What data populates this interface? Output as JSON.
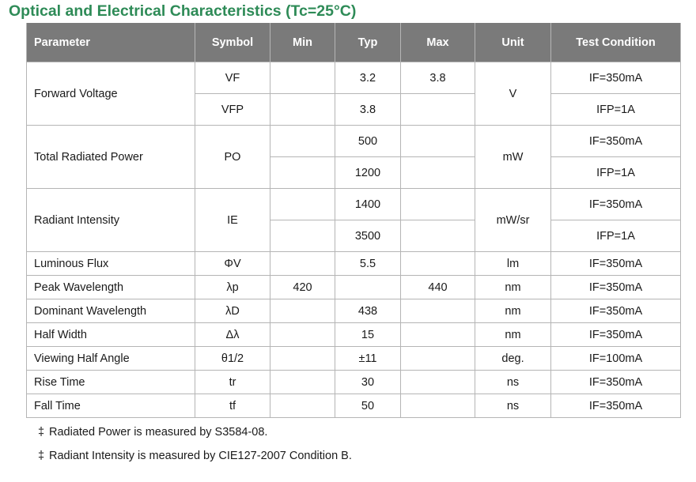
{
  "title": "Optical and Electrical Characteristics (Tc=25°C)",
  "table": {
    "headers": {
      "parameter": "Parameter",
      "symbol": "Symbol",
      "min": "Min",
      "typ": "Typ",
      "max": "Max",
      "unit": "Unit",
      "condition": "Test Condition"
    },
    "forward_voltage": {
      "parameter": "Forward Voltage",
      "unit": "V",
      "rows": [
        {
          "symbol": "VF",
          "min": "",
          "typ": "3.2",
          "max": "3.8",
          "condition": "IF=350mA"
        },
        {
          "symbol": "VFP",
          "min": "",
          "typ": "3.8",
          "max": "",
          "condition": "IFP=1A"
        }
      ]
    },
    "radiated_power": {
      "parameter": "Total Radiated Power",
      "symbol": "PO",
      "unit": "mW",
      "rows": [
        {
          "min": "",
          "typ": "500",
          "max": "",
          "condition": "IF=350mA"
        },
        {
          "min": "",
          "typ": "1200",
          "max": "",
          "condition": "IFP=1A"
        }
      ]
    },
    "radiant_intensity": {
      "parameter": "Radiant Intensity",
      "symbol": "IE",
      "unit": "mW/sr",
      "rows": [
        {
          "min": "",
          "typ": "1400",
          "max": "",
          "condition": "IF=350mA"
        },
        {
          "min": "",
          "typ": "3500",
          "max": "",
          "condition": "IFP=1A"
        }
      ]
    },
    "simple_rows": [
      {
        "parameter": "Luminous Flux",
        "symbol": "ΦV",
        "min": "",
        "typ": "5.5",
        "max": "",
        "unit": "lm",
        "condition": "IF=350mA"
      },
      {
        "parameter": "Peak Wavelength",
        "symbol": "λp",
        "min": "420",
        "typ": "",
        "max": "440",
        "unit": "nm",
        "condition": "IF=350mA"
      },
      {
        "parameter": "Dominant Wavelength",
        "symbol": "λD",
        "min": "",
        "typ": "438",
        "max": "",
        "unit": "nm",
        "condition": "IF=350mA"
      },
      {
        "parameter": "Half Width",
        "symbol": "Δλ",
        "min": "",
        "typ": "15",
        "max": "",
        "unit": "nm",
        "condition": "IF=350mA"
      },
      {
        "parameter": "Viewing Half Angle",
        "symbol": "θ1/2",
        "min": "",
        "typ": "±11",
        "max": "",
        "unit": "deg.",
        "condition": "IF=100mA"
      },
      {
        "parameter": "Rise Time",
        "symbol": "tr",
        "min": "",
        "typ": "30",
        "max": "",
        "unit": "ns",
        "condition": "IF=350mA"
      },
      {
        "parameter": "Fall Time",
        "symbol": "tf",
        "min": "",
        "typ": "50",
        "max": "",
        "unit": "ns",
        "condition": "IF=350mA"
      }
    ]
  },
  "notes": {
    "marker": "‡",
    "note1": "Radiated Power is measured by S3584-08.",
    "note2": "Radiant Intensity is measured by CIE127-2007 Condition B."
  }
}
